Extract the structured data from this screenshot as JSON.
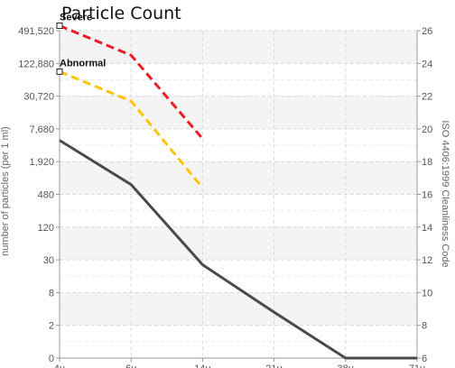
{
  "chart_data": {
    "type": "line",
    "title": "Particle Count",
    "ylabel": "number of particles (per 1 ml)",
    "y2label": "ISO 4406:1999 Cleanliness Code",
    "x": [
      "4µ",
      "6µ",
      "14µ",
      "21µ",
      "38µ",
      "71µ"
    ],
    "y_ticks": [
      "0",
      "2",
      "8",
      "30",
      "120",
      "480",
      "1,920",
      "7,680",
      "30,720",
      "122,880",
      "491,520"
    ],
    "y2_ticks": [
      "6",
      "8",
      "10",
      "12",
      "14",
      "16",
      "18",
      "20",
      "22",
      "24",
      "26"
    ],
    "y2lim": [
      6,
      26
    ],
    "grid": true,
    "series": [
      {
        "name": "",
        "color": "#4a4a4a",
        "style": "solid",
        "values": [
          19.3,
          16.6,
          11.7,
          8.8,
          6,
          6
        ]
      },
      {
        "name": "Abnormal",
        "color": "#ffc20e",
        "style": "dashed",
        "values": [
          23.5,
          21.7,
          16.4,
          null,
          null,
          null
        ]
      },
      {
        "name": "Severe",
        "color": "#ee1c25",
        "style": "dashed",
        "values": [
          26.3,
          24.5,
          19.4,
          null,
          null,
          null
        ]
      }
    ]
  }
}
